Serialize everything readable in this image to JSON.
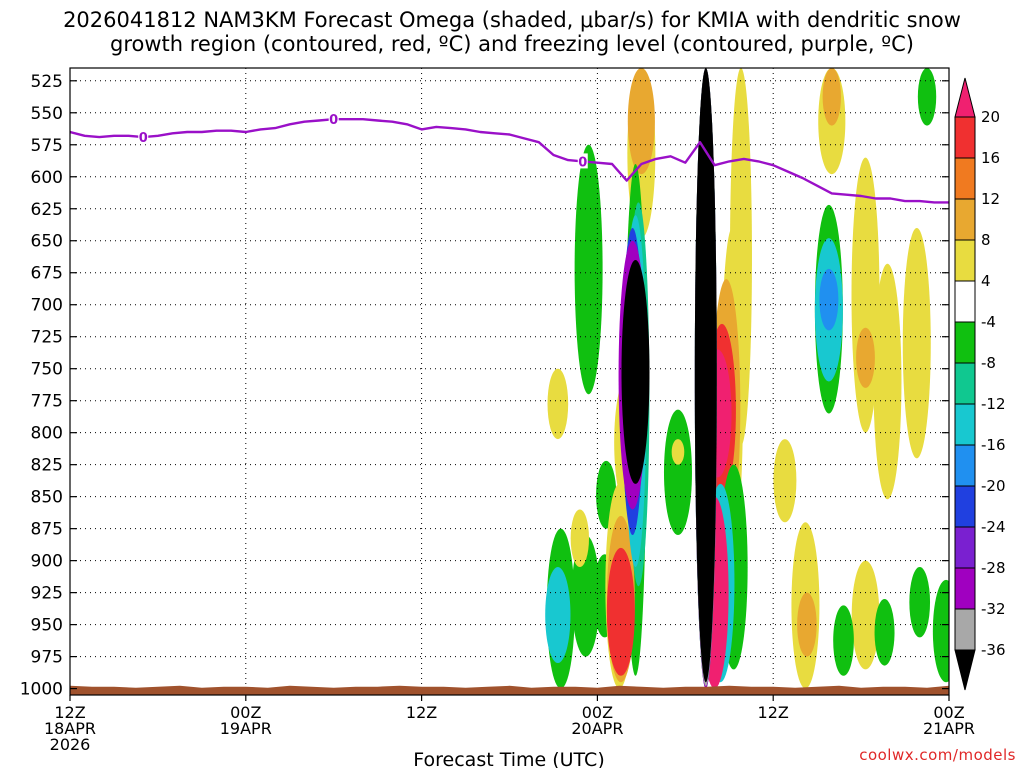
{
  "title_line_1": "2026041812 NAM3KM Forecast Omega (shaded, μbar/s) for KMIA with dendritic snow",
  "title_line_2": "growth region (contoured, red, ºC) and freezing level (contoured, purple, ºC)",
  "credit": "coolwx.com/models",
  "chart_data": {
    "type": "heatmap",
    "xlabel": "Forecast Time (UTC)",
    "x_unit": "hours since 2026-04-18 12Z",
    "xlim": [
      0,
      60
    ],
    "ylim": [
      1005,
      515
    ],
    "y_ticks": [
      525,
      550,
      575,
      600,
      625,
      650,
      675,
      700,
      725,
      750,
      775,
      800,
      825,
      850,
      875,
      900,
      925,
      950,
      975,
      1000
    ],
    "x_ticks": [
      {
        "x": 0,
        "lines": [
          "12Z",
          "18APR",
          "2026"
        ]
      },
      {
        "x": 12,
        "lines": [
          "00Z",
          "19APR"
        ]
      },
      {
        "x": 24,
        "lines": [
          "12Z"
        ]
      },
      {
        "x": 36,
        "lines": [
          "00Z",
          "20APR"
        ]
      },
      {
        "x": 48,
        "lines": [
          "12Z"
        ]
      },
      {
        "x": 60,
        "lines": [
          "00Z",
          "21APR"
        ]
      }
    ],
    "grid": true,
    "colorbar": {
      "labels": [
        "20",
        "16",
        "12",
        "8",
        "4",
        "-4",
        "-8",
        "-12",
        "-16",
        "-20",
        "-24",
        "-28",
        "-32",
        "-36"
      ],
      "colors": [
        "#f02070",
        "#f03030",
        "#f07a20",
        "#e8a830",
        "#e8dc40",
        "#ffffff",
        "#10c010",
        "#10c890",
        "#18c8d0",
        "#2090f0",
        "#2040e0",
        "#7a20d0",
        "#a000c0",
        "#a8a8a8",
        "#000000"
      ]
    },
    "freezing_level": {
      "label": "0",
      "color": "#9a10c8",
      "x": [
        0,
        1,
        2,
        3,
        4,
        5,
        6,
        7,
        8,
        9,
        10,
        11,
        12,
        13,
        14,
        15,
        16,
        17,
        18,
        19,
        20,
        21,
        22,
        23,
        24,
        25,
        26,
        27,
        28,
        29,
        30,
        31,
        32,
        33,
        34,
        35,
        36,
        37,
        38,
        39,
        40,
        41,
        42,
        43,
        44,
        45,
        46,
        47,
        48,
        49,
        50,
        51,
        52,
        53,
        54,
        55,
        56,
        57,
        58,
        59,
        60
      ],
      "p": [
        565,
        568,
        569,
        568,
        568,
        569,
        568,
        566,
        565,
        565,
        564,
        564,
        565,
        563,
        562,
        559,
        557,
        556,
        555,
        555,
        555,
        556,
        557,
        559,
        563,
        561,
        562,
        563,
        565,
        566,
        567,
        570,
        573,
        583,
        587,
        588,
        589,
        590,
        603,
        590,
        586,
        584,
        589,
        573,
        591,
        588,
        586,
        588,
        591,
        596,
        601,
        607,
        613,
        614,
        615,
        617,
        617,
        619,
        619,
        620,
        620
      ]
    },
    "regions": [
      {
        "color": "#e8dc40",
        "x": 39.0,
        "p1": 515,
        "p2": 648
      },
      {
        "color": "#e8a830",
        "x": 39.0,
        "p1": 515,
        "p2": 598
      },
      {
        "color": "#e8dc40",
        "x": 45.8,
        "p1": 515,
        "p2": 810
      },
      {
        "color": "#e8dc40",
        "x": 52.0,
        "p1": 515,
        "p2": 598
      },
      {
        "color": "#e8a830",
        "x": 52.0,
        "p1": 515,
        "p2": 560
      },
      {
        "color": "#10c010",
        "x": 58.5,
        "p1": 515,
        "p2": 560
      },
      {
        "color": "#e8dc40",
        "x": 54.3,
        "p1": 585,
        "p2": 800
      },
      {
        "color": "#e8dc40",
        "x": 57.8,
        "p1": 640,
        "p2": 820
      },
      {
        "color": "#e8dc40",
        "x": 55.8,
        "p1": 668,
        "p2": 852
      },
      {
        "color": "#e8a830",
        "x": 54.3,
        "p1": 718,
        "p2": 765
      },
      {
        "color": "#10c010",
        "x": 51.8,
        "p1": 622,
        "p2": 785
      },
      {
        "color": "#18c8d0",
        "x": 51.8,
        "p1": 648,
        "p2": 760
      },
      {
        "color": "#2090f0",
        "x": 51.8,
        "p1": 672,
        "p2": 720
      },
      {
        "color": "#e8dc40",
        "x": 33.3,
        "p1": 750,
        "p2": 805
      },
      {
        "color": "#e8dc40",
        "x": 38.1,
        "p1": 755,
        "p2": 860
      },
      {
        "color": "#e8dc40",
        "x": 37.5,
        "p1": 885,
        "p2": 965
      },
      {
        "color": "#e8dc40",
        "x": 48.8,
        "p1": 805,
        "p2": 870
      },
      {
        "color": "#10c010",
        "x": 44.3,
        "p1": 800,
        "p2": 845
      },
      {
        "color": "#10c010",
        "x": 35.4,
        "p1": 575,
        "p2": 770
      },
      {
        "color": "#10c010",
        "x": 33.5,
        "p1": 875,
        "p2": 1000
      },
      {
        "color": "#18c8d0",
        "x": 33.3,
        "p1": 905,
        "p2": 980
      },
      {
        "color": "#10c010",
        "x": 35.2,
        "p1": 880,
        "p2": 975
      },
      {
        "color": "#e8dc40",
        "x": 34.8,
        "p1": 860,
        "p2": 905
      },
      {
        "color": "#10c010",
        "x": 36.6,
        "p1": 822,
        "p2": 875
      },
      {
        "color": "#10c010",
        "x": 36.5,
        "p1": 895,
        "p2": 960
      },
      {
        "color": "#10c010",
        "x": 41.5,
        "p1": 782,
        "p2": 880
      },
      {
        "color": "#e8dc40",
        "x": 41.5,
        "p1": 805,
        "p2": 825
      },
      {
        "color": "#e8dc40",
        "x": 50.2,
        "p1": 870,
        "p2": 1000
      },
      {
        "color": "#e8a830",
        "x": 50.3,
        "p1": 925,
        "p2": 975
      },
      {
        "color": "#e8dc40",
        "x": 54.3,
        "p1": 900,
        "p2": 985
      },
      {
        "color": "#10c010",
        "x": 52.8,
        "p1": 935,
        "p2": 990
      },
      {
        "color": "#10c010",
        "x": 55.6,
        "p1": 930,
        "p2": 982
      },
      {
        "color": "#10c010",
        "x": 58.0,
        "p1": 905,
        "p2": 960
      },
      {
        "color": "#10c010",
        "x": 59.8,
        "p1": 915,
        "p2": 995
      },
      {
        "color": "#10c010",
        "x": 38.6,
        "p1": 590,
        "p2": 990
      },
      {
        "color": "#e8dc40",
        "x": 37.5,
        "p1": 840,
        "p2": 1000
      },
      {
        "color": "#e8a830",
        "x": 37.6,
        "p1": 865,
        "p2": 995
      },
      {
        "color": "#f03030",
        "x": 37.6,
        "p1": 890,
        "p2": 990
      },
      {
        "color": "#10c890",
        "x": 38.8,
        "p1": 620,
        "p2": 920
      },
      {
        "color": "#18c8d0",
        "x": 38.6,
        "p1": 630,
        "p2": 905
      },
      {
        "color": "#2040e0",
        "x": 38.4,
        "p1": 640,
        "p2": 880
      },
      {
        "color": "#a000c0",
        "x": 38.4,
        "p1": 650,
        "p2": 860
      },
      {
        "color": "#000000",
        "x": 38.6,
        "p1": 665,
        "p2": 840
      },
      {
        "color": "#e8dc40",
        "x": 45.2,
        "p1": 640,
        "p2": 895
      },
      {
        "color": "#e8a830",
        "x": 44.8,
        "p1": 680,
        "p2": 880
      },
      {
        "color": "#f03030",
        "x": 44.5,
        "p1": 715,
        "p2": 850
      },
      {
        "color": "#f02070",
        "x": 44.2,
        "p1": 735,
        "p2": 835
      },
      {
        "color": "#10c010",
        "x": 45.3,
        "p1": 825,
        "p2": 985
      },
      {
        "color": "#18c8d0",
        "x": 44.4,
        "p1": 840,
        "p2": 995
      },
      {
        "color": "#f02070",
        "x": 44.0,
        "p1": 850,
        "p2": 1000
      },
      {
        "color": "#10c010",
        "x": 43.4,
        "p1": 515,
        "p2": 1000
      },
      {
        "color": "#18c8d0",
        "x": 43.4,
        "p1": 515,
        "p2": 1000
      },
      {
        "color": "#a000c0",
        "x": 43.4,
        "p1": 515,
        "p2": 1000
      },
      {
        "color": "#a8a8a8",
        "x": 43.4,
        "p1": 515,
        "p2": 998
      },
      {
        "color": "#000000",
        "x": 43.4,
        "p1": 515,
        "p2": 995
      }
    ],
    "terrain_color": "#a0522d"
  }
}
